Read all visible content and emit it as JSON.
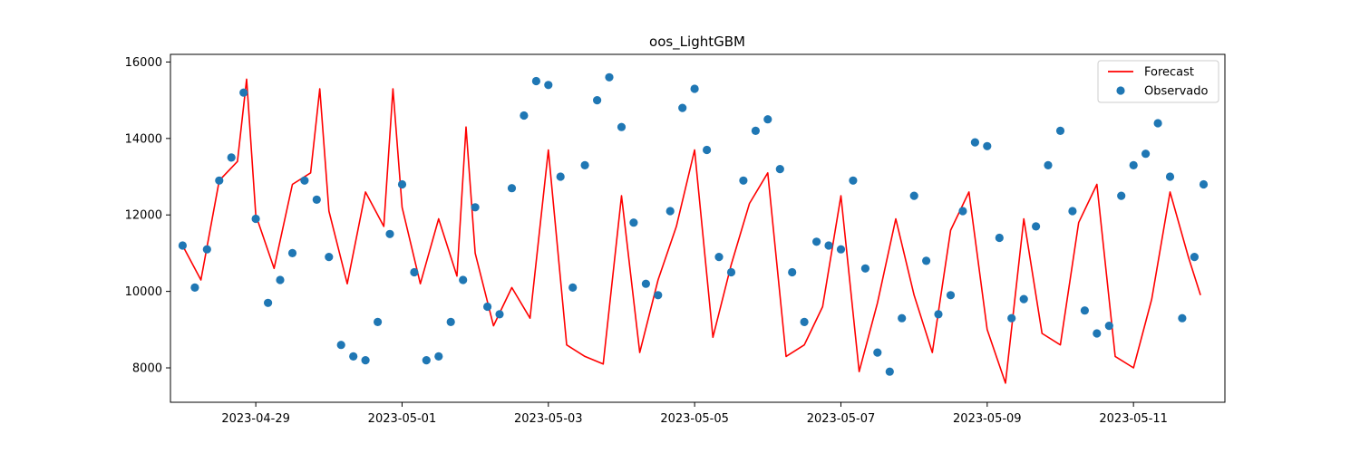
{
  "chart_data": {
    "type": "line",
    "title": "oos_LightGBM",
    "xlabel": "",
    "ylabel": "",
    "x_tick_labels": [
      "2023-04-29",
      "2023-05-01",
      "2023-05-03",
      "2023-05-05",
      "2023-05-07",
      "2023-05-09",
      "2023-05-11"
    ],
    "y_tick_labels": [
      "8000",
      "10000",
      "12000",
      "14000",
      "16000"
    ],
    "y_ticks": [
      8000,
      10000,
      12000,
      14000,
      16000
    ],
    "xlim": [
      "2023-04-27 20:00",
      "2023-05-12 06:00"
    ],
    "ylim": [
      7100,
      16200
    ],
    "grid": false,
    "legend_position": "top-right",
    "colors": {
      "forecast": "#ff0000",
      "observed": "#1f77b4"
    },
    "series": [
      {
        "name": "Forecast",
        "kind": "line",
        "color": "#ff0000",
        "x": [
          "2023-04-28 00:00",
          "2023-04-28 06:00",
          "2023-04-28 12:00",
          "2023-04-28 18:00",
          "2023-04-28 21:00",
          "2023-04-29 00:00",
          "2023-04-29 06:00",
          "2023-04-29 12:00",
          "2023-04-29 18:00",
          "2023-04-29 21:00",
          "2023-04-30 00:00",
          "2023-04-30 06:00",
          "2023-04-30 12:00",
          "2023-04-30 18:00",
          "2023-04-30 21:00",
          "2023-05-01 00:00",
          "2023-05-01 06:00",
          "2023-05-01 12:00",
          "2023-05-01 18:00",
          "2023-05-01 21:00",
          "2023-05-02 00:00",
          "2023-05-02 06:00",
          "2023-05-02 12:00",
          "2023-05-02 18:00",
          "2023-05-03 00:00",
          "2023-05-03 06:00",
          "2023-05-03 12:00",
          "2023-05-03 18:00",
          "2023-05-04 00:00",
          "2023-05-04 06:00",
          "2023-05-04 12:00",
          "2023-05-04 18:00",
          "2023-05-05 00:00",
          "2023-05-05 06:00",
          "2023-05-05 12:00",
          "2023-05-05 18:00",
          "2023-05-06 00:00",
          "2023-05-06 06:00",
          "2023-05-06 12:00",
          "2023-05-06 18:00",
          "2023-05-07 00:00",
          "2023-05-07 06:00",
          "2023-05-07 12:00",
          "2023-05-07 18:00",
          "2023-05-08 00:00",
          "2023-05-08 06:00",
          "2023-05-08 12:00",
          "2023-05-08 18:00",
          "2023-05-09 00:00",
          "2023-05-09 06:00",
          "2023-05-09 12:00",
          "2023-05-09 18:00",
          "2023-05-10 00:00",
          "2023-05-10 06:00",
          "2023-05-10 12:00",
          "2023-05-10 18:00",
          "2023-05-11 00:00",
          "2023-05-11 06:00",
          "2023-05-11 12:00",
          "2023-05-11 18:00",
          "2023-05-11 22:00"
        ],
        "y": [
          11200,
          10300,
          12900,
          13400,
          15550,
          12000,
          10600,
          12800,
          13100,
          15300,
          12100,
          10200,
          12600,
          11700,
          15300,
          12200,
          10200,
          11900,
          10400,
          14300,
          11000,
          9100,
          10100,
          9300,
          13700,
          8600,
          8300,
          8100,
          12500,
          8400,
          10300,
          11700,
          13700,
          8800,
          10700,
          12300,
          13100,
          8300,
          8600,
          9600,
          12500,
          7900,
          9700,
          11900,
          9900,
          8400,
          11600,
          12600,
          9000,
          7600,
          11900,
          8900,
          8600,
          11800,
          12800,
          8300,
          8000,
          9800,
          12600,
          10900,
          9900
        ]
      },
      {
        "name": "Observado",
        "kind": "scatter",
        "color": "#1f77b4",
        "x": [
          "2023-04-28 00:00",
          "2023-04-28 04:00",
          "2023-04-28 08:00",
          "2023-04-28 12:00",
          "2023-04-28 16:00",
          "2023-04-28 20:00",
          "2023-04-29 00:00",
          "2023-04-29 04:00",
          "2023-04-29 08:00",
          "2023-04-29 12:00",
          "2023-04-29 16:00",
          "2023-04-29 20:00",
          "2023-04-30 00:00",
          "2023-04-30 04:00",
          "2023-04-30 08:00",
          "2023-04-30 12:00",
          "2023-04-30 16:00",
          "2023-04-30 20:00",
          "2023-05-01 00:00",
          "2023-05-01 04:00",
          "2023-05-01 08:00",
          "2023-05-01 12:00",
          "2023-05-01 16:00",
          "2023-05-01 20:00",
          "2023-05-02 00:00",
          "2023-05-02 04:00",
          "2023-05-02 08:00",
          "2023-05-02 12:00",
          "2023-05-02 16:00",
          "2023-05-02 20:00",
          "2023-05-03 00:00",
          "2023-05-03 04:00",
          "2023-05-03 08:00",
          "2023-05-03 12:00",
          "2023-05-03 16:00",
          "2023-05-03 20:00",
          "2023-05-04 00:00",
          "2023-05-04 04:00",
          "2023-05-04 08:00",
          "2023-05-04 12:00",
          "2023-05-04 16:00",
          "2023-05-04 20:00",
          "2023-05-05 00:00",
          "2023-05-05 04:00",
          "2023-05-05 08:00",
          "2023-05-05 12:00",
          "2023-05-05 16:00",
          "2023-05-05 20:00",
          "2023-05-06 00:00",
          "2023-05-06 04:00",
          "2023-05-06 08:00",
          "2023-05-06 12:00",
          "2023-05-06 16:00",
          "2023-05-06 20:00",
          "2023-05-07 00:00",
          "2023-05-07 04:00",
          "2023-05-07 08:00",
          "2023-05-07 12:00",
          "2023-05-07 16:00",
          "2023-05-07 20:00",
          "2023-05-08 00:00",
          "2023-05-08 04:00",
          "2023-05-08 08:00",
          "2023-05-08 12:00",
          "2023-05-08 16:00",
          "2023-05-08 20:00",
          "2023-05-09 00:00",
          "2023-05-09 04:00",
          "2023-05-09 08:00",
          "2023-05-09 12:00",
          "2023-05-09 16:00",
          "2023-05-09 20:00",
          "2023-05-10 00:00",
          "2023-05-10 04:00",
          "2023-05-10 08:00",
          "2023-05-10 12:00",
          "2023-05-10 16:00",
          "2023-05-10 20:00",
          "2023-05-11 00:00",
          "2023-05-11 04:00",
          "2023-05-11 08:00",
          "2023-05-11 12:00",
          "2023-05-11 16:00",
          "2023-05-11 20:00",
          "2023-05-11 23:00"
        ],
        "y": [
          11200,
          10100,
          11100,
          12900,
          13500,
          15200,
          11900,
          9700,
          10300,
          11000,
          12900,
          12400,
          10900,
          8600,
          8300,
          8200,
          9200,
          11500,
          12800,
          10500,
          8200,
          8300,
          9200,
          10300,
          12200,
          9600,
          9400,
          12700,
          14600,
          15500,
          15400,
          13000,
          10100,
          13300,
          15000,
          15600,
          14300,
          11800,
          10200,
          9900,
          12100,
          14800,
          15300,
          13700,
          10900,
          10500,
          12900,
          14200,
          14500,
          13200,
          10500,
          9200,
          11300,
          11200,
          11100,
          12900,
          10600,
          8400,
          7900,
          9300,
          12500,
          10800,
          9400,
          9900,
          12100,
          13900,
          13800,
          11400,
          9300,
          9800,
          11700,
          13300,
          14200,
          12100,
          9500,
          8900,
          9100,
          12500,
          13300,
          13600,
          14400,
          13000,
          9300,
          10900,
          12800
        ]
      }
    ]
  }
}
